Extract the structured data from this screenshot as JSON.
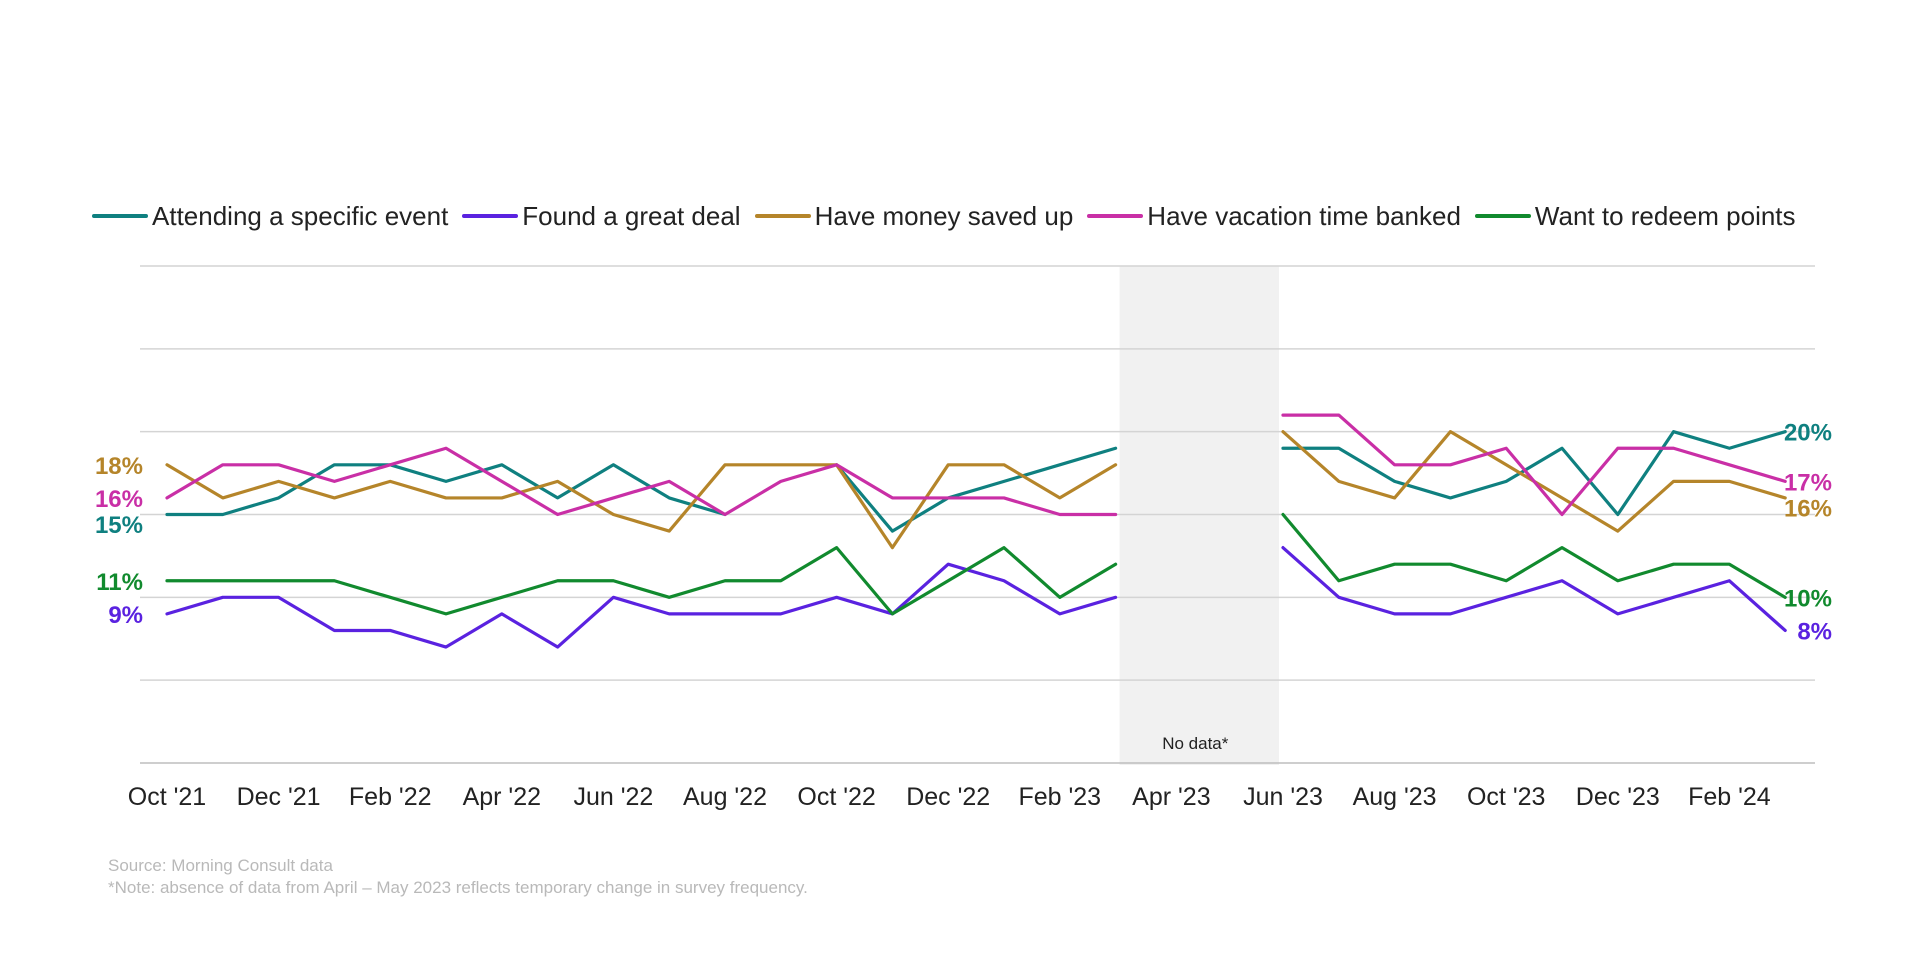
{
  "chart_data": {
    "type": "line",
    "title": "",
    "xlabel": "",
    "ylabel": "",
    "ylim": [
      0,
      30
    ],
    "gridlines": [
      0,
      5,
      10,
      15,
      20,
      25,
      30
    ],
    "grid": true,
    "legend_position": "top",
    "x": [
      "Oct '21",
      "Nov '21",
      "Dec '21",
      "Jan '22",
      "Feb '22",
      "Mar '22",
      "Apr '22",
      "May '22",
      "Jun '22",
      "Jul '22",
      "Aug '22",
      "Sep '22",
      "Oct '22",
      "Nov '22",
      "Dec '22",
      "Jan '23",
      "Feb '23",
      "Mar '23",
      "Apr '23",
      "May '23",
      "Jun '23",
      "Jul '23",
      "Aug '23",
      "Sep '23",
      "Oct '23",
      "Nov '23",
      "Dec '23",
      "Jan '24",
      "Feb '24",
      "Mar '24"
    ],
    "tick_labels": [
      "Oct '21",
      "Dec '21",
      "Feb '22",
      "Apr '22",
      "Jun '22",
      "Aug '22",
      "Oct '22",
      "Dec '22",
      "Feb '23",
      "Apr '23",
      "Jun '23",
      "Aug '23",
      "Oct '23",
      "Dec '23",
      "Feb '24"
    ],
    "no_data": {
      "from": "Apr '23",
      "to": "May '23",
      "label": "No data*"
    },
    "series": [
      {
        "name": "Attending a specific event",
        "color": "#0f8080",
        "start_label": "15%",
        "end_label": "20%",
        "values": [
          15,
          15,
          16,
          18,
          18,
          17,
          18,
          16,
          18,
          16,
          15,
          null,
          18,
          14,
          16,
          17,
          18,
          19,
          null,
          null,
          19,
          19,
          17,
          16,
          17,
          19,
          15,
          20,
          19,
          20
        ]
      },
      {
        "name": "Found a great deal",
        "color": "#5a22e0",
        "start_label": "9%",
        "end_label": "8%",
        "values": [
          9,
          10,
          10,
          8,
          8,
          7,
          9,
          7,
          10,
          9,
          9,
          9,
          10,
          9,
          12,
          11,
          9,
          10,
          null,
          null,
          13,
          10,
          9,
          9,
          10,
          11,
          9,
          10,
          11,
          8
        ]
      },
      {
        "name": "Have money saved up",
        "color": "#b5852a",
        "start_label": "18%",
        "end_label": "16%",
        "values": [
          18,
          16,
          17,
          16,
          17,
          16,
          16,
          17,
          15,
          14,
          18,
          18,
          18,
          13,
          18,
          18,
          16,
          18,
          null,
          null,
          20,
          17,
          16,
          20,
          18,
          16,
          14,
          17,
          17,
          16
        ]
      },
      {
        "name": "Have vacation time banked",
        "color": "#c92fa6",
        "start_label": "16%",
        "end_label": "17%",
        "values": [
          16,
          18,
          18,
          17,
          18,
          19,
          17,
          15,
          16,
          17,
          15,
          17,
          18,
          16,
          16,
          16,
          15,
          15,
          null,
          null,
          21,
          21,
          18,
          18,
          19,
          15,
          19,
          19,
          18,
          17
        ]
      },
      {
        "name": "Want to redeem points",
        "color": "#118a2e",
        "start_label": "11%",
        "end_label": "10%",
        "values": [
          11,
          11,
          11,
          11,
          10,
          9,
          10,
          11,
          11,
          10,
          11,
          11,
          13,
          9,
          11,
          13,
          10,
          12,
          null,
          null,
          15,
          11,
          12,
          12,
          11,
          13,
          11,
          12,
          12,
          10
        ]
      }
    ]
  },
  "footnotes": {
    "source": "Source: Morning Consult data",
    "note": "*Note: absence of data from April – May 2023 reflects temporary change in survey frequency."
  }
}
